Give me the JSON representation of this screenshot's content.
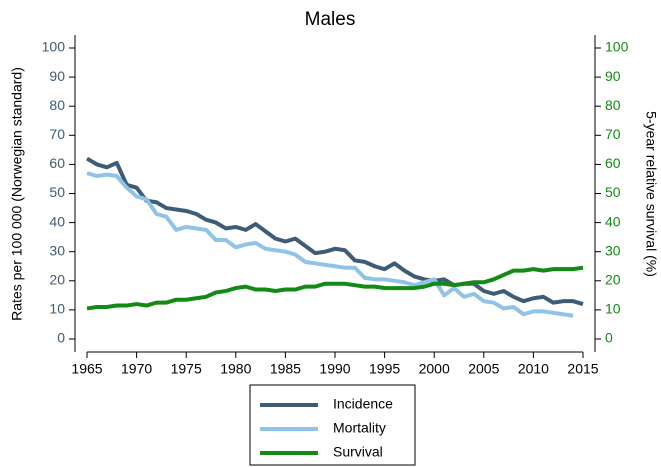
{
  "chart_data": {
    "type": "line",
    "title": "Males",
    "ylabel": "Rates per 100 000 (Norwegian standard)",
    "y2label": "5-year relative survival (%)",
    "x": [
      1965,
      1966,
      1967,
      1968,
      1969,
      1970,
      1971,
      1972,
      1973,
      1974,
      1975,
      1976,
      1977,
      1978,
      1979,
      1980,
      1981,
      1982,
      1983,
      1984,
      1985,
      1986,
      1987,
      1988,
      1989,
      1990,
      1991,
      1992,
      1993,
      1994,
      1995,
      1996,
      1997,
      1998,
      1999,
      2000,
      2001,
      2002,
      2003,
      2004,
      2005,
      2006,
      2007,
      2008,
      2009,
      2010,
      2011,
      2012,
      2013,
      2014,
      2015
    ],
    "series": [
      {
        "name": "Incidence",
        "color": "#3e5c76",
        "values": [
          62,
          60,
          59,
          60.5,
          53,
          52,
          47.5,
          47,
          45,
          44.5,
          44,
          43,
          41,
          40,
          38,
          38.5,
          37.5,
          39.5,
          37,
          34.5,
          33.5,
          34.5,
          32,
          29.5,
          30,
          31,
          30.5,
          27,
          26.5,
          25,
          24,
          26,
          23.5,
          21.5,
          20.5,
          20,
          20.5,
          18.5,
          19,
          19,
          16.5,
          15.5,
          16.5,
          14.5,
          13,
          14,
          14.5,
          12.5,
          13,
          13,
          12
        ]
      },
      {
        "name": "Mortality",
        "color": "#8fc3e8",
        "values": [
          57,
          56,
          56.5,
          56,
          52,
          49,
          48,
          43,
          42,
          37.5,
          38.5,
          38,
          37.5,
          34,
          34,
          31.5,
          32.5,
          33,
          31,
          30.5,
          30,
          29,
          26.5,
          26,
          25.5,
          25,
          24.5,
          24.5,
          21,
          20.5,
          20.5,
          20,
          19.5,
          18.5,
          19.5,
          20.5,
          15,
          17.5,
          14.5,
          15.5,
          13,
          12.5,
          10.5,
          11,
          8.5,
          9.5,
          9.5,
          9,
          8.5,
          8,
          null
        ]
      },
      {
        "name": "Survival",
        "color": "#138a13",
        "axis": "y2",
        "values": [
          10.5,
          11,
          11,
          11.5,
          11.5,
          12,
          11.5,
          12.5,
          12.5,
          13.5,
          13.5,
          14,
          14.5,
          16,
          16.5,
          17.5,
          18,
          17,
          17,
          16.5,
          17,
          17,
          18,
          18,
          19,
          19,
          19,
          18.5,
          18,
          18,
          17.5,
          17.5,
          17.5,
          17.5,
          18,
          19,
          19,
          18.5,
          19,
          19.5,
          19.5,
          20.5,
          22,
          23.5,
          23.5,
          24,
          23.5,
          24,
          24,
          24,
          24.5
        ]
      }
    ],
    "xlim": [
      1965,
      2015
    ],
    "xticks": [
      1965,
      1970,
      1975,
      1980,
      1985,
      1990,
      1995,
      2000,
      2005,
      2010,
      2015
    ],
    "ylim": [
      0,
      100
    ],
    "yticks": [
      0,
      10,
      20,
      30,
      40,
      50,
      60,
      70,
      80,
      90,
      100
    ],
    "y2lim": [
      0,
      100
    ],
    "y2ticks": [
      0,
      10,
      20,
      30,
      40,
      50,
      60,
      70,
      80,
      90,
      100
    ],
    "ytick_color": "#3e5c76",
    "y2tick_color": "#138a13",
    "legend": "bottom",
    "grid": false
  }
}
